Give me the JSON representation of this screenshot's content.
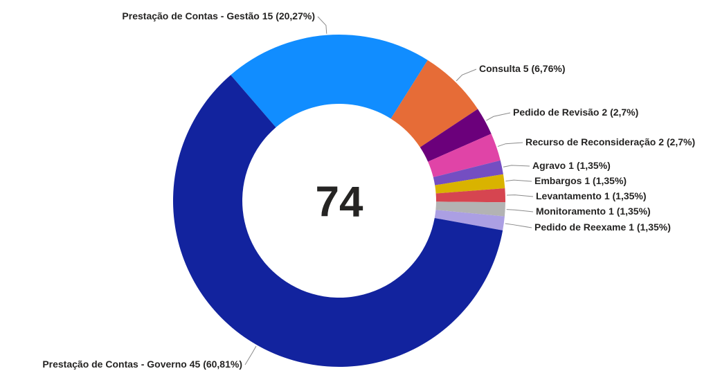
{
  "chart_data": {
    "type": "donut",
    "total": 74,
    "categories": [
      "Prestação de Contas - Gestão",
      "Consulta",
      "Pedido de Revisão",
      "Recurso de Reconsideração",
      "Agravo",
      "Embargos",
      "Levantamento",
      "Monitoramento",
      "Pedido de Reexame",
      "Prestação de Contas - Governo"
    ],
    "values": [
      15,
      5,
      2,
      2,
      1,
      1,
      1,
      1,
      1,
      45
    ],
    "percents": [
      20.27,
      6.76,
      2.7,
      2.7,
      1.35,
      1.35,
      1.35,
      1.35,
      1.35,
      60.81
    ],
    "percent_labels": [
      "(20,27%)",
      "(6,76%)",
      "(2,7%)",
      "(2,7%)",
      "(1,35%)",
      "(1,35%)",
      "(1,35%)",
      "(1,35%)",
      "(1,35%)",
      "(60,81%)"
    ],
    "colors": [
      "#118dff",
      "#e66c37",
      "#6b007b",
      "#e044a7",
      "#744ec2",
      "#d9b300",
      "#d64550",
      "#b3b3b3",
      "#ab9fe3",
      "#12239e"
    ]
  }
}
